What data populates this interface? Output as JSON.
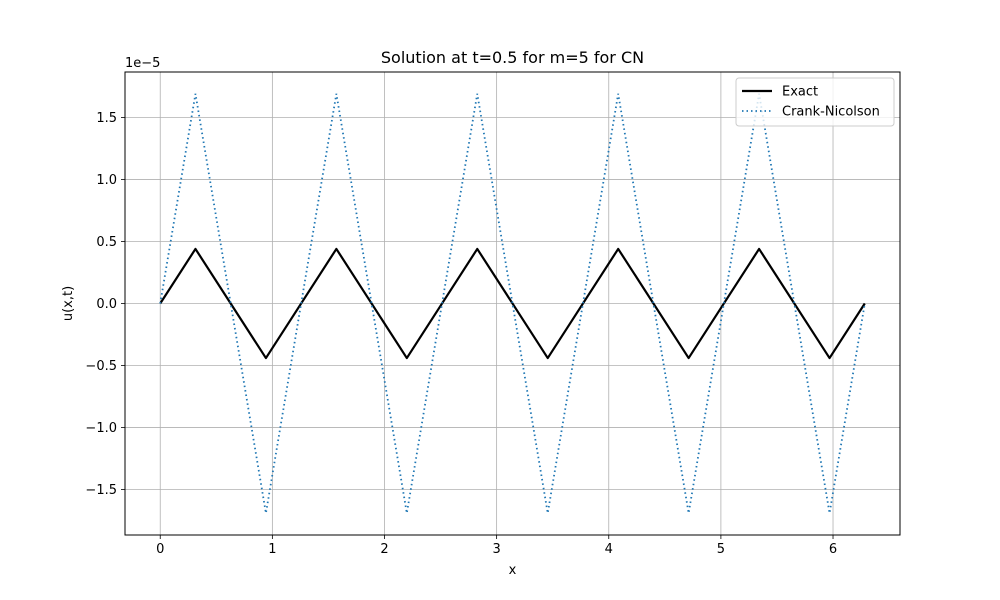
{
  "chart_data": {
    "type": "line",
    "title": "Solution at t=0.5 for m=5 for CN",
    "xlabel": "x",
    "ylabel": "u(x,t)",
    "y_offset_label": "1e−5",
    "y_scale_factor": 1e-05,
    "xlim": [
      -0.3142,
      6.5973
    ],
    "ylim": [
      -1.866e-05,
      1.866e-05
    ],
    "x_ticks": [
      0,
      1,
      2,
      3,
      4,
      5,
      6
    ],
    "x_tick_labels": [
      "0",
      "1",
      "2",
      "3",
      "4",
      "5",
      "6"
    ],
    "y_ticks": [
      -1.5e-05,
      -1e-05,
      -5e-06,
      0,
      5e-06,
      1e-05,
      1.5e-05
    ],
    "y_tick_labels": [
      "−1.5",
      "−1.0",
      "−0.5",
      "0.0",
      "0.5",
      "1.0",
      "1.5"
    ],
    "grid": true,
    "legend_position": "top-right",
    "series": [
      {
        "name": "Exact",
        "color": "#000000",
        "style": "solid",
        "x": [
          0,
          0.3142,
          0.9425,
          1.5708,
          2.1991,
          2.8274,
          3.4558,
          4.0841,
          4.7124,
          5.3407,
          5.969,
          6.2832
        ],
        "y": [
          0,
          4.4e-06,
          -4.4e-06,
          4.4e-06,
          -4.4e-06,
          4.4e-06,
          -4.4e-06,
          4.4e-06,
          -4.4e-06,
          4.4e-06,
          -4.4e-06,
          0
        ]
      },
      {
        "name": "Crank-Nicolson",
        "color": "#1f77b4",
        "style": "dotted",
        "x": [
          0,
          0.3142,
          0.9425,
          1.5708,
          2.1991,
          2.8274,
          3.4558,
          4.0841,
          4.7124,
          5.3407,
          5.969,
          6.2832
        ],
        "y": [
          0,
          1.69e-05,
          -1.69e-05,
          1.69e-05,
          -1.69e-05,
          1.69e-05,
          -1.69e-05,
          1.69e-05,
          -1.69e-05,
          1.69e-05,
          -1.69e-05,
          0
        ]
      }
    ]
  }
}
